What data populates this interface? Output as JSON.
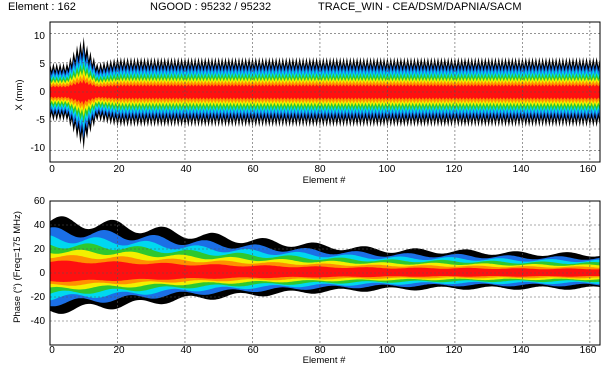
{
  "header": {
    "element_label": "Element : 162",
    "ngood_label": "NGOOD : 95232 / 95232",
    "app_label": "TRACE_WIN - CEA/DSM/DAPNIA/SACM"
  },
  "palette": {
    "outer": "#000000",
    "blue": "#1b6fe6",
    "cyan": "#00d8f0",
    "green": "#2ec82e",
    "yellow": "#f2f000",
    "orange": "#ff9000",
    "red": "#ff1010"
  },
  "chart_data": [
    {
      "type": "area",
      "title": "",
      "xlabel": "Element #",
      "ylabel": "X (mm)",
      "xlim": [
        0,
        163
      ],
      "ylim": [
        -12,
        12
      ],
      "xticks": [
        "0",
        "20",
        "40",
        "60",
        "80",
        "100",
        "120",
        "140",
        "160"
      ],
      "yticks": [
        "10",
        "5",
        "0",
        "-5",
        "-10"
      ],
      "grid": true,
      "description_series": [
        {
          "name": "",
          "x": [
            0,
            5,
            8,
            10,
            11,
            14,
            20,
            40,
            60,
            80,
            100,
            120,
            140,
            162
          ],
          "y_max": [
            5,
            5,
            8,
            9.5,
            8,
            5,
            6,
            6,
            6,
            6,
            6,
            6,
            6,
            6
          ],
          "y_min": [
            -5,
            -5,
            -8,
            -10,
            -8,
            -5,
            -6,
            -6,
            -6,
            -6,
            -6,
            -6,
            -6,
            -6
          ]
        }
      ]
    },
    {
      "type": "area",
      "title": "",
      "xlabel": "Element #",
      "ylabel": "Phase (°)  (Freq=175 MHz)",
      "xlim": [
        0,
        163
      ],
      "ylim": [
        -60,
        60
      ],
      "xticks": [
        "0",
        "20",
        "40",
        "60",
        "80",
        "100",
        "120",
        "140",
        "160"
      ],
      "yticks": [
        "60",
        "40",
        "20",
        "0",
        "-20",
        "-40"
      ],
      "grid": true,
      "description_series": [
        {
          "name": "",
          "x": [
            0,
            20,
            40,
            60,
            80,
            100,
            120,
            140,
            162
          ],
          "y_max": [
            48,
            44,
            36,
            30,
            25,
            21,
            20,
            18,
            17
          ],
          "y_min": [
            -35,
            -30,
            -24,
            -20,
            -17,
            -15,
            -14,
            -14,
            -14
          ]
        }
      ]
    }
  ]
}
